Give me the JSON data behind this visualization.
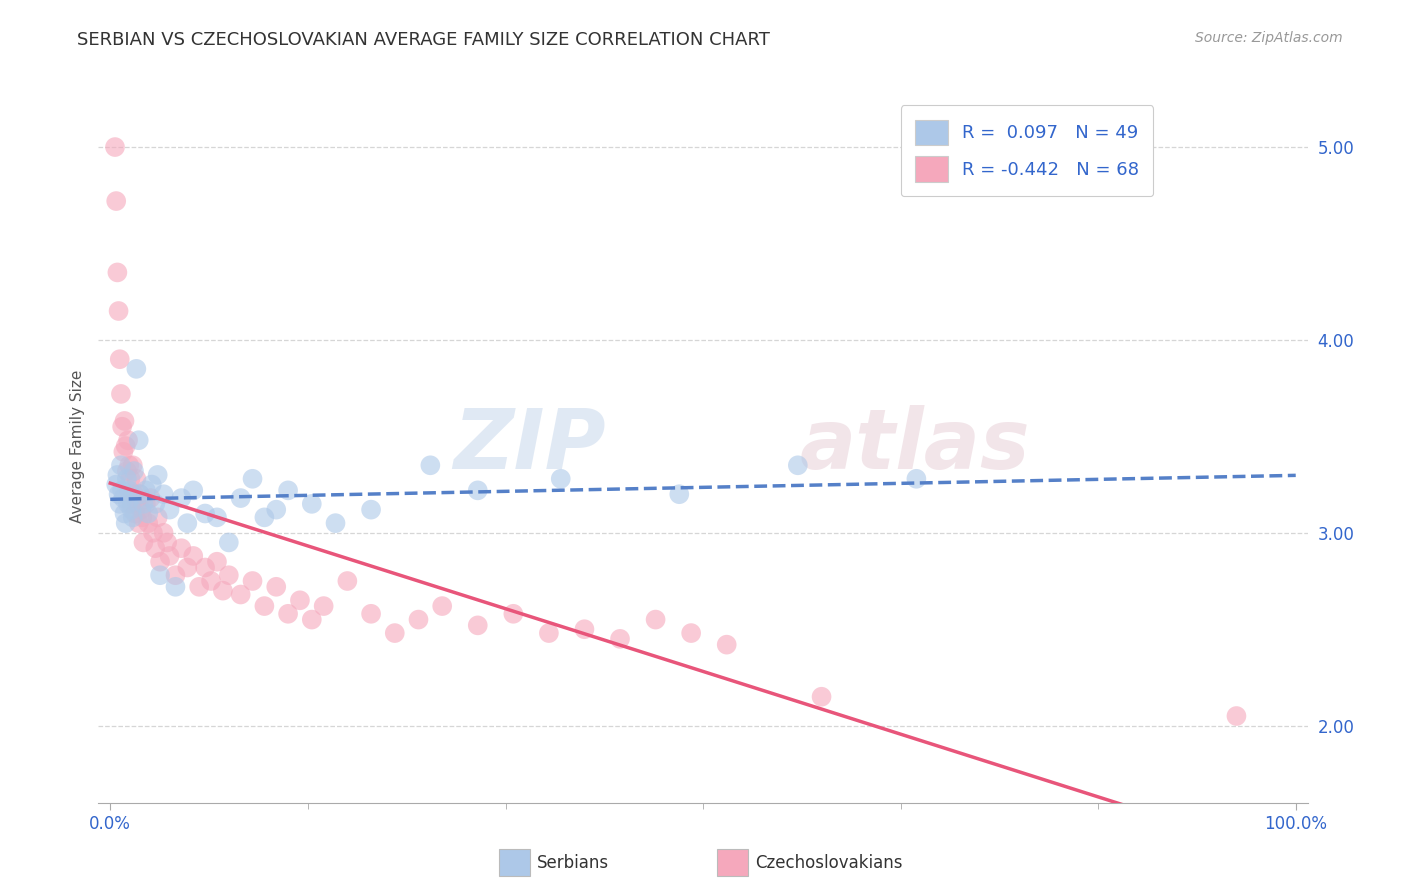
{
  "title": "SERBIAN VS CZECHOSLOVAKIAN AVERAGE FAMILY SIZE CORRELATION CHART",
  "source": "Source: ZipAtlas.com",
  "ylabel": "Average Family Size",
  "xlim": [
    -0.01,
    1.01
  ],
  "ylim": [
    1.6,
    5.3
  ],
  "yticks": [
    2.0,
    3.0,
    4.0,
    5.0
  ],
  "xticks": [
    0.0,
    1.0
  ],
  "xticklabels": [
    "0.0%",
    "100.0%"
  ],
  "yticklabels": [
    "2.00",
    "3.00",
    "4.00",
    "5.00"
  ],
  "serbian_color": "#adc8e8",
  "czechoslovakian_color": "#f5a8bc",
  "serbian_R": 0.097,
  "serbian_N": 49,
  "czechoslovakian_R": -0.442,
  "czechoslovakian_N": 68,
  "trend_blue_color": "#5580c8",
  "trend_pink_color": "#e8557a",
  "legend_text_color": "#3366cc",
  "background_color": "#ffffff",
  "grid_color": "#cccccc",
  "serbian_x": [
    0.005,
    0.006,
    0.007,
    0.008,
    0.009,
    0.01,
    0.011,
    0.012,
    0.013,
    0.014,
    0.015,
    0.016,
    0.017,
    0.018,
    0.019,
    0.02,
    0.022,
    0.024,
    0.025,
    0.028,
    0.03,
    0.032,
    0.035,
    0.038,
    0.04,
    0.042,
    0.045,
    0.05,
    0.055,
    0.06,
    0.065,
    0.07,
    0.08,
    0.09,
    0.1,
    0.11,
    0.12,
    0.13,
    0.14,
    0.15,
    0.17,
    0.19,
    0.22,
    0.27,
    0.31,
    0.38,
    0.48,
    0.58,
    0.68
  ],
  "serbian_y": [
    3.25,
    3.3,
    3.2,
    3.15,
    3.35,
    3.22,
    3.18,
    3.1,
    3.05,
    3.28,
    3.15,
    3.22,
    3.18,
    3.12,
    3.08,
    3.32,
    3.85,
    3.48,
    3.2,
    3.15,
    3.22,
    3.1,
    3.25,
    3.15,
    3.3,
    2.78,
    3.2,
    3.12,
    2.72,
    3.18,
    3.05,
    3.22,
    3.1,
    3.08,
    2.95,
    3.18,
    3.28,
    3.08,
    3.12,
    3.22,
    3.15,
    3.05,
    3.12,
    3.35,
    3.22,
    3.28,
    3.2,
    3.35,
    3.28
  ],
  "czechoslovakian_x": [
    0.004,
    0.005,
    0.006,
    0.007,
    0.008,
    0.009,
    0.01,
    0.011,
    0.012,
    0.013,
    0.014,
    0.015,
    0.016,
    0.017,
    0.018,
    0.019,
    0.02,
    0.021,
    0.022,
    0.023,
    0.024,
    0.025,
    0.026,
    0.027,
    0.028,
    0.03,
    0.032,
    0.034,
    0.036,
    0.038,
    0.04,
    0.042,
    0.045,
    0.048,
    0.05,
    0.055,
    0.06,
    0.065,
    0.07,
    0.075,
    0.08,
    0.085,
    0.09,
    0.095,
    0.1,
    0.11,
    0.12,
    0.13,
    0.14,
    0.15,
    0.16,
    0.17,
    0.18,
    0.2,
    0.22,
    0.24,
    0.26,
    0.28,
    0.31,
    0.34,
    0.37,
    0.4,
    0.43,
    0.46,
    0.49,
    0.52,
    0.6,
    0.95
  ],
  "czechoslovakian_y": [
    5.0,
    4.72,
    4.35,
    4.15,
    3.9,
    3.72,
    3.55,
    3.42,
    3.58,
    3.45,
    3.32,
    3.48,
    3.35,
    3.28,
    3.15,
    3.35,
    3.2,
    3.1,
    3.28,
    3.15,
    3.05,
    3.2,
    3.12,
    3.08,
    2.95,
    3.15,
    3.05,
    3.18,
    3.0,
    2.92,
    3.08,
    2.85,
    3.0,
    2.95,
    2.88,
    2.78,
    2.92,
    2.82,
    2.88,
    2.72,
    2.82,
    2.75,
    2.85,
    2.7,
    2.78,
    2.68,
    2.75,
    2.62,
    2.72,
    2.58,
    2.65,
    2.55,
    2.62,
    2.75,
    2.58,
    2.48,
    2.55,
    2.62,
    2.52,
    2.58,
    2.48,
    2.5,
    2.45,
    2.55,
    2.48,
    2.42,
    2.15,
    2.05
  ]
}
